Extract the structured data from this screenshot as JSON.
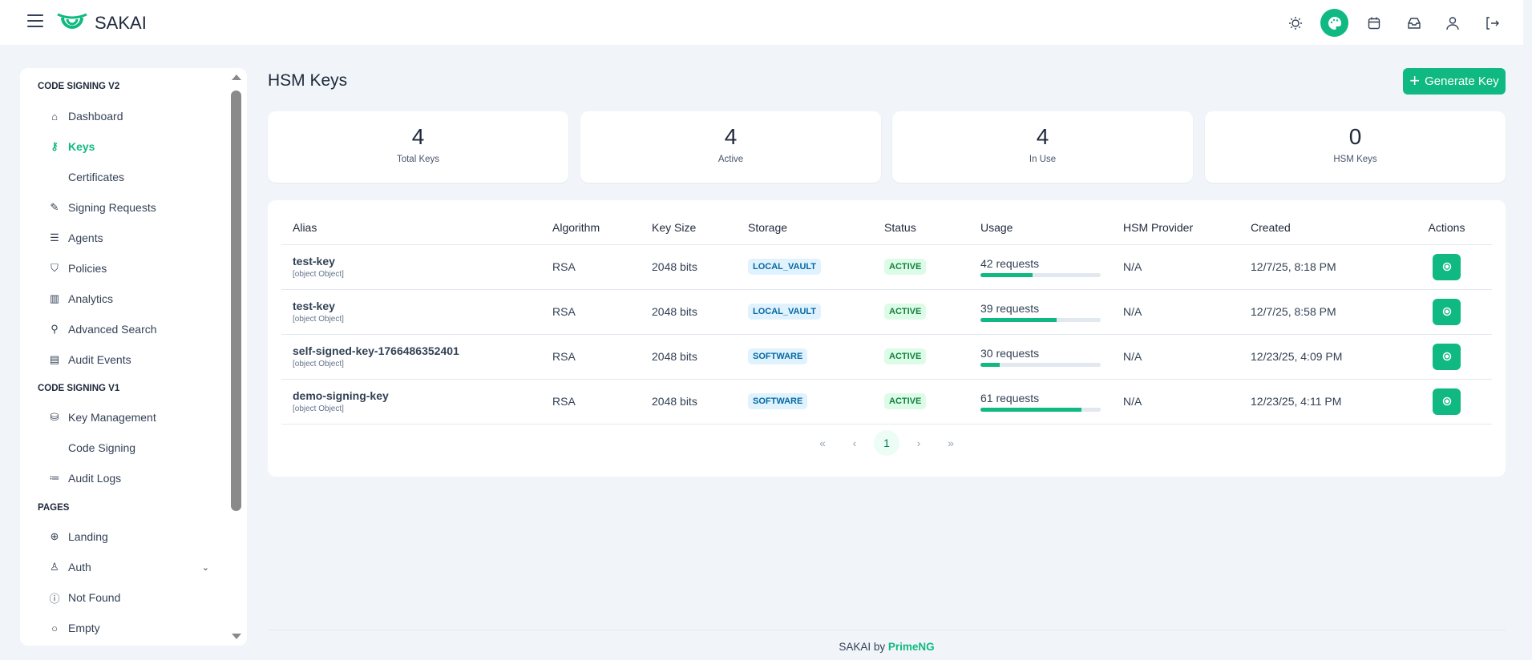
{
  "topbar": {
    "brand": "SAKAI",
    "icons": [
      "sun-icon",
      "palette-icon",
      "calendar-icon",
      "inbox-icon",
      "user-icon",
      "sign-out-icon"
    ],
    "accent": "#10b981"
  },
  "sidebar": {
    "sections": [
      {
        "title": "CODE SIGNING V2",
        "items": [
          {
            "label": "Dashboard",
            "icon": "home-icon"
          },
          {
            "label": "Keys",
            "icon": "key-icon",
            "active": true
          },
          {
            "label": "Certificates"
          },
          {
            "label": "Signing Requests",
            "icon": "file-edit-icon"
          },
          {
            "label": "Agents",
            "icon": "server-icon"
          },
          {
            "label": "Policies",
            "icon": "shield-icon"
          },
          {
            "label": "Analytics",
            "icon": "chart-bar-icon"
          },
          {
            "label": "Advanced Search",
            "icon": "search-icon"
          },
          {
            "label": "Audit Events",
            "icon": "book-icon"
          }
        ]
      },
      {
        "title": "CODE SIGNING V1",
        "items": [
          {
            "label": "Key Management",
            "icon": "database-icon"
          },
          {
            "label": "Code Signing"
          },
          {
            "label": "Audit Logs",
            "icon": "list-icon"
          }
        ]
      },
      {
        "title": "PAGES",
        "items": [
          {
            "label": "Landing",
            "icon": "globe-icon"
          },
          {
            "label": "Auth",
            "icon": "user-icon",
            "expandable": true
          },
          {
            "label": "Not Found",
            "icon": "exclamation-circle-icon"
          },
          {
            "label": "Empty",
            "icon": "circle-icon"
          }
        ]
      }
    ]
  },
  "page": {
    "title": "HSM Keys",
    "generate_label": "Generate Key"
  },
  "stats": [
    {
      "value": "4",
      "label": "Total Keys"
    },
    {
      "value": "4",
      "label": "Active"
    },
    {
      "value": "4",
      "label": "In Use"
    },
    {
      "value": "0",
      "label": "HSM Keys"
    }
  ],
  "table": {
    "columns": [
      "Alias",
      "Algorithm",
      "Key Size",
      "Storage",
      "Status",
      "Usage",
      "HSM Provider",
      "Created",
      "Actions"
    ],
    "rows": [
      {
        "alias": "test-key",
        "sub": "[object Object]",
        "algorithm": "RSA",
        "key_size": "2048 bits",
        "storage": "LOCAL_VAULT",
        "status": "ACTIVE",
        "usage": "42 requests",
        "usage_fraction": 0.43,
        "hsm": "N/A",
        "created": "12/7/25, 8:18 PM"
      },
      {
        "alias": "test-key",
        "sub": "[object Object]",
        "algorithm": "RSA",
        "key_size": "2048 bits",
        "storage": "LOCAL_VAULT",
        "status": "ACTIVE",
        "usage": "39 requests",
        "usage_fraction": 0.63,
        "hsm": "N/A",
        "created": "12/7/25, 8:58 PM"
      },
      {
        "alias": "self-signed-key-1766486352401",
        "sub": "[object Object]",
        "algorithm": "RSA",
        "key_size": "2048 bits",
        "storage": "SOFTWARE",
        "status": "ACTIVE",
        "usage": "30 requests",
        "usage_fraction": 0.16,
        "hsm": "N/A",
        "created": "12/23/25, 4:09 PM"
      },
      {
        "alias": "demo-signing-key",
        "sub": "[object Object]",
        "algorithm": "RSA",
        "key_size": "2048 bits",
        "storage": "SOFTWARE",
        "status": "ACTIVE",
        "usage": "61 requests",
        "usage_fraction": 0.84,
        "hsm": "N/A",
        "created": "12/23/25, 4:11 PM"
      }
    ]
  },
  "pagination": {
    "first": "«",
    "prev": "‹",
    "current": "1",
    "next": "›",
    "last": "»"
  },
  "footer": {
    "text": "SAKAI by",
    "link": "PrimeNG"
  }
}
